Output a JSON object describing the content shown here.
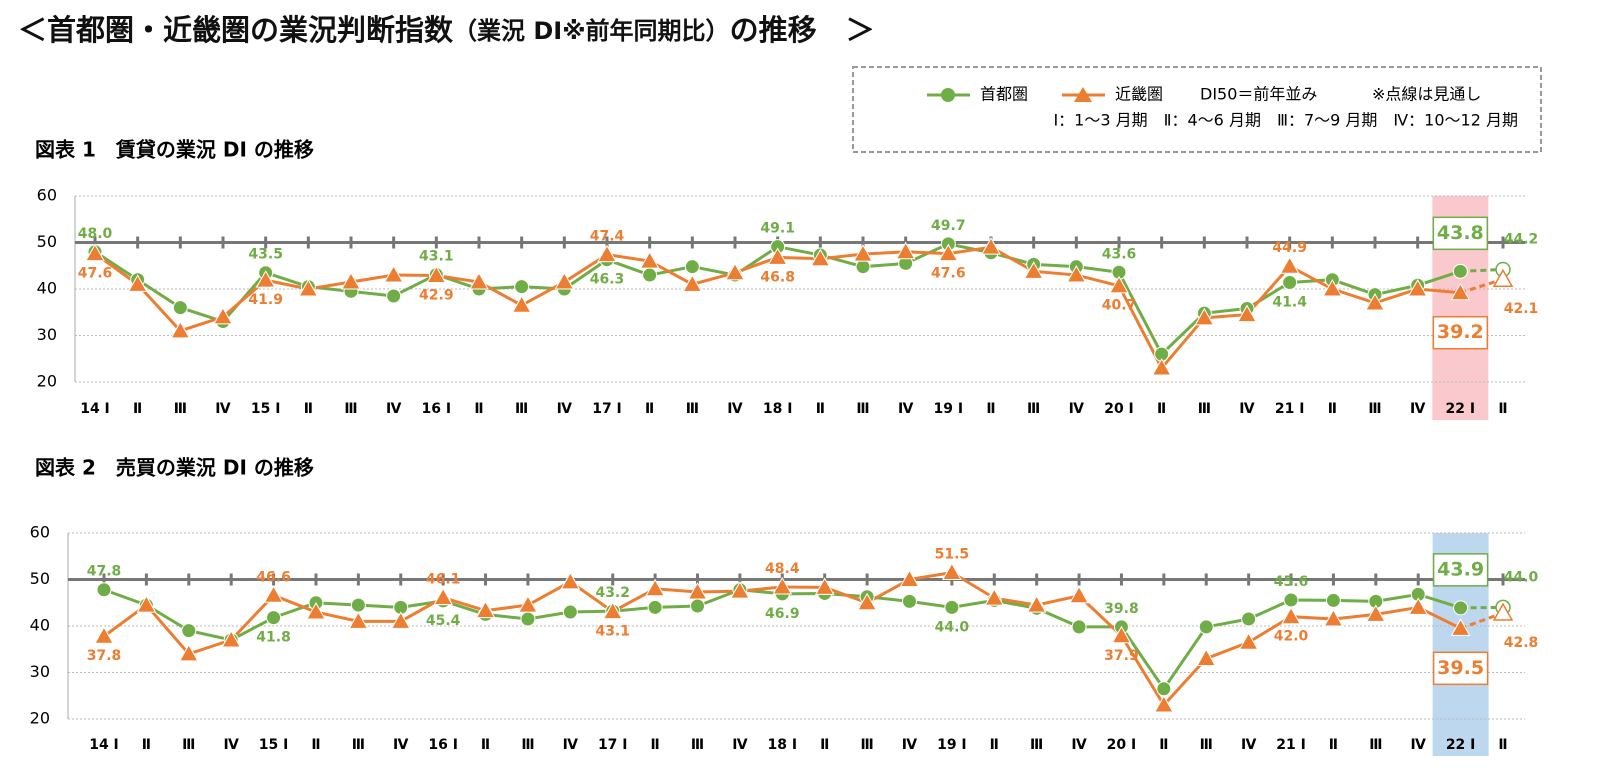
{
  "title": "＜首都圏・近畿圏の業況判断指数",
  "title_note": "（業況 DI※前年同期比）",
  "title_end": "の推移　＞",
  "legend": {
    "notes": [
      "DI50＝前年並み",
      "※点線は見通し",
      "Ⅰ：1～3 月期　Ⅱ：4～6 月期　Ⅲ：7～9 月期　Ⅳ：10～12 月期"
    ]
  },
  "chart_data": [
    {
      "type": "line",
      "title": "図表 1　賃貸の業況 DI の推移",
      "categories": [
        "14 Ⅰ",
        "Ⅱ",
        "Ⅲ",
        "Ⅳ",
        "15 Ⅰ",
        "Ⅱ",
        "Ⅲ",
        "Ⅳ",
        "16 Ⅰ",
        "Ⅱ",
        "Ⅲ",
        "Ⅳ",
        "17 Ⅰ",
        "Ⅱ",
        "Ⅲ",
        "Ⅳ",
        "18 Ⅰ",
        "Ⅱ",
        "Ⅲ",
        "Ⅳ",
        "19 Ⅰ",
        "Ⅱ",
        "Ⅲ",
        "Ⅳ",
        "20 Ⅰ",
        "Ⅱ",
        "Ⅲ",
        "Ⅳ",
        "21 Ⅰ",
        "Ⅱ",
        "Ⅲ",
        "Ⅳ",
        "22 Ⅰ",
        "Ⅱ"
      ],
      "series": [
        {
          "name": "首都圏",
          "color": "#70ad47",
          "marker": "circle",
          "values": [
            48.0,
            42,
            36,
            33,
            43.5,
            40.5,
            39.5,
            38.5,
            43.1,
            40,
            40.5,
            40,
            46.3,
            43,
            44.8,
            43,
            49.1,
            47.3,
            44.8,
            45.5,
            49.7,
            47.8,
            45.3,
            44.8,
            43.6,
            26,
            34.8,
            35.8,
            41.4,
            42,
            38.8,
            40.8,
            43.8,
            44.2
          ],
          "value_labels": [
            "48.0",
            null,
            null,
            null,
            "43.5",
            null,
            null,
            null,
            "43.1",
            null,
            null,
            null,
            "46.3",
            null,
            null,
            null,
            "49.1",
            null,
            null,
            null,
            "49.7",
            null,
            null,
            null,
            "43.6",
            null,
            null,
            null,
            "41.4",
            null,
            null,
            null,
            "43.8",
            "44.2"
          ]
        },
        {
          "name": "近畿圏",
          "color": "#ed7d31",
          "marker": "triangle",
          "values": [
            47.6,
            41,
            31,
            34,
            41.9,
            40,
            41.5,
            43,
            42.9,
            41.5,
            36.5,
            41.5,
            47.4,
            46,
            41,
            43.5,
            46.8,
            46.5,
            47.5,
            48,
            47.6,
            49,
            43.8,
            43,
            40.7,
            23,
            33.8,
            34.5,
            44.9,
            40,
            37,
            40,
            39.2,
            42.1
          ],
          "value_labels": [
            "47.6",
            null,
            null,
            null,
            "41.9",
            null,
            null,
            null,
            "42.9",
            null,
            null,
            null,
            "47.4",
            null,
            null,
            null,
            "46.8",
            null,
            null,
            null,
            "47.6",
            null,
            null,
            null,
            "40.7",
            null,
            null,
            null,
            "44.9",
            null,
            null,
            null,
            "39.2",
            "42.1"
          ]
        }
      ],
      "ylim": [
        20,
        60
      ],
      "yticks": [
        20,
        30,
        40,
        50,
        60
      ],
      "reference_line": 50,
      "grid": true,
      "highlight_color": "#f9c9cd",
      "forecast_dashed": true
    },
    {
      "type": "line",
      "title": "図表 2　売買の業況 DI の推移",
      "categories": [
        "14 Ⅰ",
        "Ⅱ",
        "Ⅲ",
        "Ⅳ",
        "15 Ⅰ",
        "Ⅱ",
        "Ⅲ",
        "Ⅳ",
        "16 Ⅰ",
        "Ⅱ",
        "Ⅲ",
        "Ⅳ",
        "17 Ⅰ",
        "Ⅱ",
        "Ⅲ",
        "Ⅳ",
        "18 Ⅰ",
        "Ⅱ",
        "Ⅲ",
        "Ⅳ",
        "19 Ⅰ",
        "Ⅱ",
        "Ⅲ",
        "Ⅳ",
        "20 Ⅰ",
        "Ⅱ",
        "Ⅲ",
        "Ⅳ",
        "21 Ⅰ",
        "Ⅱ",
        "Ⅲ",
        "Ⅳ",
        "22 Ⅰ",
        "Ⅱ"
      ],
      "series": [
        {
          "name": "首都圏",
          "color": "#70ad47",
          "marker": "circle",
          "values": [
            47.8,
            44.5,
            39,
            37,
            41.8,
            45,
            44.5,
            44,
            45.4,
            42.5,
            41.5,
            43,
            43.2,
            44,
            44.3,
            47.8,
            46.9,
            47,
            46.3,
            45.3,
            44.0,
            45.5,
            43.8,
            39.8,
            39.8,
            26.5,
            39.8,
            41.5,
            45.6,
            45.5,
            45.3,
            46.8,
            43.9,
            44.0
          ],
          "value_labels": [
            "47.8",
            null,
            null,
            null,
            "41.8",
            null,
            null,
            null,
            "45.4",
            null,
            null,
            null,
            "43.2",
            null,
            null,
            null,
            "46.9",
            null,
            null,
            null,
            "44.0",
            null,
            null,
            null,
            "39.8",
            null,
            null,
            null,
            "45.6",
            null,
            null,
            null,
            "43.9",
            "44.0"
          ]
        },
        {
          "name": "近畿圏",
          "color": "#ed7d31",
          "marker": "triangle",
          "values": [
            37.8,
            44.5,
            34,
            37,
            46.6,
            43,
            41,
            41,
            46.1,
            43.3,
            44.5,
            49.5,
            43.1,
            48,
            47.3,
            47.5,
            48.4,
            48.3,
            45,
            50,
            51.5,
            46,
            44.5,
            46.5,
            37.9,
            23,
            33,
            36.5,
            42.0,
            41.5,
            42.5,
            44,
            39.5,
            42.8
          ],
          "value_labels": [
            "37.8",
            null,
            null,
            null,
            "46.6",
            null,
            null,
            null,
            "46.1",
            null,
            null,
            null,
            "43.1",
            null,
            null,
            null,
            "48.4",
            null,
            null,
            null,
            "51.5",
            null,
            null,
            null,
            "37.9",
            null,
            null,
            null,
            "42.0",
            null,
            null,
            null,
            "39.5",
            "42.8"
          ]
        }
      ],
      "ylim": [
        20,
        60
      ],
      "yticks": [
        20,
        30,
        40,
        50,
        60
      ],
      "reference_line": 50,
      "grid": true,
      "highlight_color": "#bdd7ee",
      "forecast_dashed": true
    }
  ]
}
